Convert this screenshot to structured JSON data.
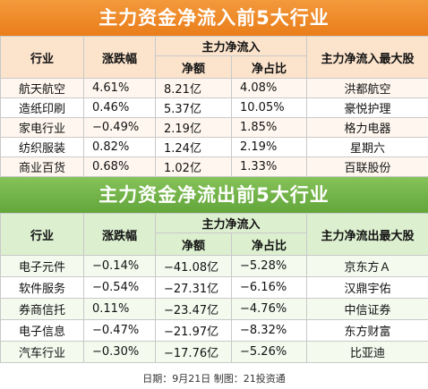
{
  "inflow": {
    "title": "主力资金净流入前5大行业",
    "headers": {
      "industry": "行业",
      "change": "涨跌幅",
      "group": "主力净流入",
      "amount": "净额",
      "ratio": "净占比",
      "top_stock": "主力净流入最大股"
    },
    "rows": [
      {
        "industry": "航天航空",
        "change": "4.61%",
        "amount": "8.21亿",
        "ratio": "4.08%",
        "stock": "洪都航空"
      },
      {
        "industry": "造纸印刷",
        "change": "0.46%",
        "amount": "5.37亿",
        "ratio": "10.05%",
        "stock": "豪悦护理"
      },
      {
        "industry": "家电行业",
        "change": "−0.49%",
        "amount": "2.19亿",
        "ratio": "1.85%",
        "stock": "格力电器"
      },
      {
        "industry": "纺织服装",
        "change": "0.82%",
        "amount": "1.24亿",
        "ratio": "2.19%",
        "stock": "星期六"
      },
      {
        "industry": "商业百货",
        "change": "0.68%",
        "amount": "1.02亿",
        "ratio": "1.33%",
        "stock": "百联股份"
      }
    ]
  },
  "outflow": {
    "title": "主力资金净流出前5大行业",
    "headers": {
      "industry": "行业",
      "change": "涨跌幅",
      "group": "主力净流入",
      "amount": "净额",
      "ratio": "净占比",
      "top_stock": "主力净流出最大股"
    },
    "rows": [
      {
        "industry": "电子元件",
        "change": "−0.14%",
        "amount": "−41.08亿",
        "ratio": "−5.28%",
        "stock": "京东方Ａ"
      },
      {
        "industry": "软件服务",
        "change": "−0.54%",
        "amount": "−27.31亿",
        "ratio": "−6.16%",
        "stock": "汉鼎宇佑"
      },
      {
        "industry": "券商信托",
        "change": "0.11%",
        "amount": "−23.47亿",
        "ratio": "−4.76%",
        "stock": "中信证券"
      },
      {
        "industry": "电子信息",
        "change": "−0.47%",
        "amount": "−21.97亿",
        "ratio": "−8.32%",
        "stock": "东方财富"
      },
      {
        "industry": "汽车行业",
        "change": "−0.30%",
        "amount": "−17.76亿",
        "ratio": "−5.26%",
        "stock": "比亚迪"
      }
    ]
  },
  "footer": "日期：9月21日 制图：21投资通",
  "colors": {
    "inflow_banner": "#ea7d1a",
    "outflow_banner": "#62a63a",
    "inflow_header": "#fbe3cc",
    "outflow_header": "#dcefcf"
  }
}
